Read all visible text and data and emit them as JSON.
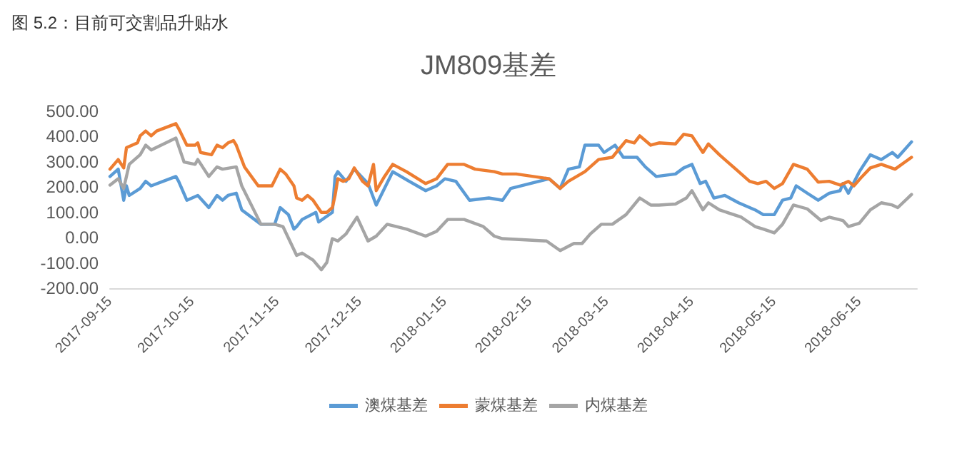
{
  "chart_data": {
    "type": "line",
    "title": "JM809基差",
    "annotations": [
      "图 5.2：目前可交割品升贴水"
    ],
    "xlim": [
      "2017-09-15",
      "2018-07-06"
    ],
    "xticks": [
      "2017-09-15",
      "2017-10-15",
      "2017-11-15",
      "2017-12-15",
      "2018-01-15",
      "2018-02-15",
      "2018-03-15",
      "2018-04-15",
      "2018-05-15",
      "2018-06-15"
    ],
    "ylim": [
      -200,
      500
    ],
    "yticks": [
      {
        "value": -200,
        "label": "-200.00"
      },
      {
        "value": -100,
        "label": "-100.00"
      },
      {
        "value": 0,
        "label": "0.00"
      },
      {
        "value": 100,
        "label": "100.00"
      },
      {
        "value": 200,
        "label": "200.00"
      },
      {
        "value": 300,
        "label": "300.00"
      },
      {
        "value": 400,
        "label": "400.00"
      },
      {
        "value": 500,
        "label": "500.00"
      }
    ],
    "grid": false,
    "legend": "bottom",
    "marker": "none",
    "line_style": "solid",
    "series": [
      {
        "name": "澳煤基差",
        "color": "#5b9bd5",
        "x": [
          "2017-09-15",
          "2017-09-18",
          "2017-09-20",
          "2017-09-21",
          "2017-09-22",
          "2017-09-26",
          "2017-09-28",
          "2017-09-30",
          "2017-10-09",
          "2017-10-10",
          "2017-10-13",
          "2017-10-17",
          "2017-10-21",
          "2017-10-24",
          "2017-10-26",
          "2017-10-28",
          "2017-10-31",
          "2017-11-02",
          "2017-11-09",
          "2017-11-14",
          "2017-11-16",
          "2017-11-19",
          "2017-11-21",
          "2017-11-22",
          "2017-11-24",
          "2017-11-29",
          "2017-11-30",
          "2017-12-05",
          "2017-12-06",
          "2017-12-07",
          "2017-12-10",
          "2017-12-13",
          "2017-12-18",
          "2017-12-21",
          "2017-12-27",
          "2018-01-02",
          "2018-01-08",
          "2018-01-12",
          "2018-01-15",
          "2018-01-19",
          "2018-01-24",
          "2018-01-31",
          "2018-02-05",
          "2018-02-08",
          "2018-02-22",
          "2018-02-26",
          "2018-03-01",
          "2018-03-05",
          "2018-03-07",
          "2018-03-12",
          "2018-03-14",
          "2018-03-18",
          "2018-03-21",
          "2018-03-26",
          "2018-03-29",
          "2018-04-02",
          "2018-04-09",
          "2018-04-12",
          "2018-04-15",
          "2018-04-18",
          "2018-04-20",
          "2018-04-23",
          "2018-04-27",
          "2018-05-02",
          "2018-05-08",
          "2018-05-11",
          "2018-05-15",
          "2018-05-18",
          "2018-05-21",
          "2018-05-23",
          "2018-05-27",
          "2018-05-31",
          "2018-06-04",
          "2018-06-08",
          "2018-06-09",
          "2018-06-11",
          "2018-06-15",
          "2018-06-19",
          "2018-06-23",
          "2018-06-27",
          "2018-06-29",
          "2018-07-04"
        ],
        "values": [
          242,
          271,
          148,
          205,
          167,
          195,
          223,
          205,
          242,
          223,
          148,
          167,
          119,
          167,
          148,
          167,
          176,
          110,
          53,
          53,
          119,
          91,
          34,
          44,
          72,
          100,
          62,
          100,
          242,
          261,
          223,
          271,
          214,
          129,
          261,
          223,
          186,
          205,
          233,
          223,
          148,
          157,
          148,
          195,
          233,
          195,
          271,
          280,
          366,
          366,
          337,
          366,
          318,
          318,
          280,
          242,
          252,
          276,
          290,
          214,
          223,
          157,
          167,
          138,
          110,
          91,
          91,
          148,
          157,
          205,
          176,
          148,
          176,
          186,
          214,
          176,
          261,
          328,
          309,
          337,
          318,
          379
        ]
      },
      {
        "name": "蒙煤基差",
        "color": "#ed7d31",
        "x": [
          "2017-09-15",
          "2017-09-18",
          "2017-09-20",
          "2017-09-21",
          "2017-09-25",
          "2017-09-26",
          "2017-09-28",
          "2017-09-30",
          "2017-10-02",
          "2017-10-09",
          "2017-10-10",
          "2017-10-13",
          "2017-10-16",
          "2017-10-17",
          "2017-10-18",
          "2017-10-22",
          "2017-10-24",
          "2017-10-26",
          "2017-10-28",
          "2017-10-30",
          "2017-10-31",
          "2017-11-03",
          "2017-11-08",
          "2017-11-13",
          "2017-11-16",
          "2017-11-18",
          "2017-11-21",
          "2017-11-22",
          "2017-11-24",
          "2017-11-26",
          "2017-11-28",
          "2017-12-01",
          "2017-12-03",
          "2017-12-05",
          "2017-12-06",
          "2017-12-07",
          "2017-12-09",
          "2017-12-11",
          "2017-12-13",
          "2017-12-16",
          "2017-12-18",
          "2017-12-20",
          "2017-12-21",
          "2017-12-24",
          "2017-12-27",
          "2018-01-01",
          "2018-01-08",
          "2018-01-12",
          "2018-01-16",
          "2018-01-22",
          "2018-01-26",
          "2018-02-02",
          "2018-02-05",
          "2018-02-10",
          "2018-02-22",
          "2018-02-26",
          "2018-03-01",
          "2018-03-07",
          "2018-03-12",
          "2018-03-17",
          "2018-03-22",
          "2018-03-25",
          "2018-03-27",
          "2018-03-31",
          "2018-04-03",
          "2018-04-09",
          "2018-04-12",
          "2018-04-15",
          "2018-04-19",
          "2018-04-21",
          "2018-04-25",
          "2018-05-01",
          "2018-05-06",
          "2018-05-09",
          "2018-05-12",
          "2018-05-15",
          "2018-05-18",
          "2018-05-22",
          "2018-05-27",
          "2018-05-31",
          "2018-06-04",
          "2018-06-08",
          "2018-06-11",
          "2018-06-13",
          "2018-06-16",
          "2018-06-19",
          "2018-06-23",
          "2018-06-28",
          "2018-07-04"
        ],
        "values": [
          271,
          309,
          276,
          356,
          375,
          403,
          422,
          403,
          422,
          451,
          432,
          366,
          366,
          375,
          337,
          328,
          366,
          356,
          375,
          384,
          366,
          280,
          205,
          205,
          271,
          252,
          205,
          157,
          148,
          167,
          148,
          100,
          100,
          119,
          167,
          233,
          223,
          233,
          276,
          223,
          205,
          290,
          186,
          242,
          290,
          261,
          214,
          233,
          290,
          290,
          271,
          261,
          252,
          252,
          233,
          195,
          223,
          261,
          309,
          318,
          384,
          375,
          403,
          366,
          375,
          371,
          409,
          403,
          337,
          371,
          328,
          271,
          223,
          214,
          223,
          195,
          214,
          290,
          271,
          220,
          223,
          208,
          223,
          205,
          242,
          276,
          290,
          271,
          318
        ]
      },
      {
        "name": "内煤基差",
        "color": "#a5a5a5",
        "x": [
          "2017-09-15",
          "2017-09-18",
          "2017-09-20",
          "2017-09-22",
          "2017-09-26",
          "2017-09-28",
          "2017-09-30",
          "2017-10-09",
          "2017-10-12",
          "2017-10-16",
          "2017-10-17",
          "2017-10-21",
          "2017-10-24",
          "2017-10-26",
          "2017-10-31",
          "2017-11-02",
          "2017-11-09",
          "2017-11-14",
          "2017-11-17",
          "2017-11-22",
          "2017-11-24",
          "2017-11-28",
          "2017-12-01",
          "2017-12-03",
          "2017-12-05",
          "2017-12-07",
          "2017-12-10",
          "2017-12-14",
          "2017-12-18",
          "2017-12-21",
          "2017-12-25",
          "2018-01-01",
          "2018-01-08",
          "2018-01-12",
          "2018-01-16",
          "2018-01-22",
          "2018-01-29",
          "2018-02-02",
          "2018-02-05",
          "2018-02-21",
          "2018-02-26",
          "2018-03-03",
          "2018-03-06",
          "2018-03-09",
          "2018-03-13",
          "2018-03-17",
          "2018-03-22",
          "2018-03-27",
          "2018-03-31",
          "2018-04-03",
          "2018-04-09",
          "2018-04-13",
          "2018-04-15",
          "2018-04-19",
          "2018-04-21",
          "2018-04-25",
          "2018-05-03",
          "2018-05-08",
          "2018-05-11",
          "2018-05-15",
          "2018-05-18",
          "2018-05-22",
          "2018-05-27",
          "2018-06-01",
          "2018-06-04",
          "2018-06-09",
          "2018-06-11",
          "2018-06-15",
          "2018-06-19",
          "2018-06-23",
          "2018-06-27",
          "2018-06-29",
          "2018-07-04"
        ],
        "values": [
          208,
          233,
          195,
          290,
          328,
          366,
          347,
          394,
          299,
          290,
          309,
          242,
          280,
          271,
          280,
          205,
          53,
          53,
          44,
          -70,
          -61,
          -89,
          -127,
          -98,
          -4,
          -13,
          15,
          81,
          -13,
          6,
          53,
          34,
          6,
          25,
          72,
          72,
          44,
          6,
          -4,
          -13,
          -51,
          -23,
          -23,
          15,
          53,
          53,
          91,
          157,
          129,
          129,
          133,
          157,
          186,
          110,
          138,
          110,
          81,
          44,
          34,
          19,
          53,
          129,
          114,
          68,
          81,
          68,
          44,
          57,
          110,
          138,
          129,
          119,
          171
        ]
      }
    ]
  }
}
